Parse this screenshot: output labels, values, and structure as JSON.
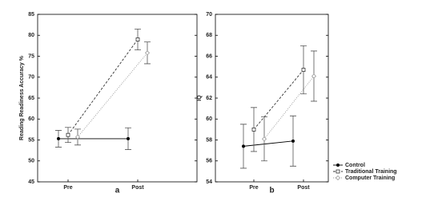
{
  "chart_data": [
    {
      "type": "line",
      "label": "a",
      "y_label": "Reading Readiness Accuracy %",
      "categories": [
        "Pre",
        "Post"
      ],
      "ylim": [
        45,
        85
      ],
      "yticks": [
        45,
        50,
        55,
        60,
        65,
        70,
        75,
        80,
        85
      ],
      "series": [
        {
          "name": "Control",
          "color": "#000000",
          "line_style": "solid",
          "values": [
            55.3,
            55.3
          ],
          "errors": [
            2.0,
            2.6
          ]
        },
        {
          "name": "Traditional Training",
          "color": "#333333",
          "line_style": "dashed",
          "values": [
            56.2,
            79.0
          ],
          "errors": [
            1.8,
            2.5
          ]
        },
        {
          "name": "Computer Training",
          "color": "#999999",
          "line_style": "dotted",
          "values": [
            55.7,
            75.8
          ],
          "errors": [
            1.9,
            2.6
          ]
        }
      ]
    },
    {
      "type": "line",
      "label": "b",
      "y_label": "IQ",
      "categories": [
        "Pre",
        "Post"
      ],
      "ylim": [
        54,
        70
      ],
      "yticks": [
        54,
        56,
        58,
        60,
        62,
        64,
        66,
        68,
        70
      ],
      "legend": "outside-bottom-right",
      "series": [
        {
          "name": "Control",
          "color": "#000000",
          "line_style": "solid",
          "values": [
            57.4,
            57.9
          ],
          "errors": [
            2.1,
            2.4
          ]
        },
        {
          "name": "Traditional Training",
          "color": "#333333",
          "line_style": "dashed",
          "values": [
            59.0,
            64.7
          ],
          "errors": [
            2.1,
            2.3
          ]
        },
        {
          "name": "Computer Training",
          "color": "#999999",
          "line_style": "dotted",
          "values": [
            58.1,
            64.1
          ],
          "errors": [
            2.1,
            2.4
          ]
        }
      ]
    }
  ]
}
